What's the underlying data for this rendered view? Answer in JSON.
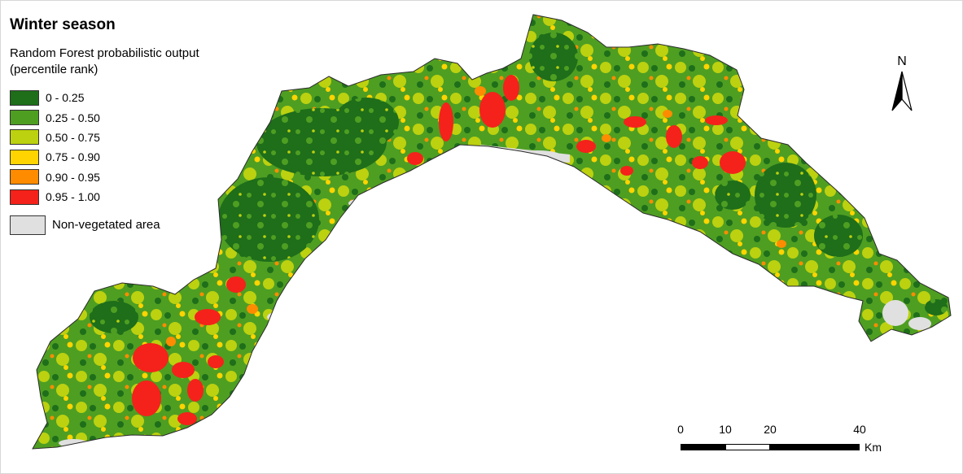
{
  "title": "Winter season",
  "subtitle_line1": "Random Forest probabilistic output",
  "subtitle_line2": "(percentile rank)",
  "legend": [
    {
      "label": "0 - 0.25",
      "color": "#1e6e1a"
    },
    {
      "label": "0.25 - 0.50",
      "color": "#4e9e22"
    },
    {
      "label": "0.50 - 0.75",
      "color": "#bcd10f"
    },
    {
      "label": "0.75 - 0.90",
      "color": "#ffd400"
    },
    {
      "label": "0.90 - 0.95",
      "color": "#ff8c00"
    },
    {
      "label": "0.95 - 1.00",
      "color": "#f4221a"
    }
  ],
  "non_vegetated": {
    "label": "Non-vegetated area",
    "color": "#e0e0e0"
  },
  "north_label": "N",
  "scale": {
    "ticks": [
      {
        "label": "0",
        "value": 0
      },
      {
        "label": "10",
        "value": 10
      },
      {
        "label": "20",
        "value": 20
      },
      {
        "label": "40",
        "value": 40
      }
    ],
    "unit": "Km"
  }
}
